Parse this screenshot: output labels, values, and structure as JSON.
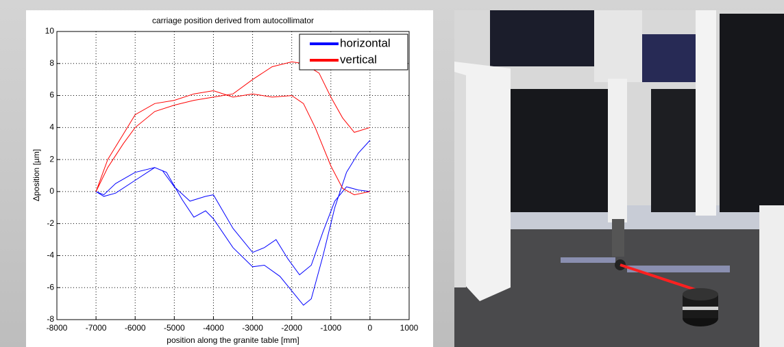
{
  "chart_data": {
    "type": "line",
    "title": "carriage position derived from autocollimator",
    "x_label": "position along the granite table [mm]",
    "y_label": "Δposition [µm]",
    "xlim": [
      -8000,
      1000
    ],
    "xticks": [
      -8000,
      -7000,
      -6000,
      -5000,
      -4000,
      -3000,
      -2000,
      -1000,
      0,
      1000
    ],
    "ylim": [
      -8,
      10
    ],
    "yticks": [
      -8,
      -6,
      -4,
      -2,
      0,
      2,
      4,
      6,
      8,
      10
    ],
    "grid": true,
    "legend": "upper right",
    "series": [
      {
        "name": "horizontal",
        "color": "#0000ff",
        "x": [
          -7000,
          -6800,
          -6500,
          -6000,
          -5500,
          -5200,
          -4800,
          -4500,
          -4200,
          -4000,
          -3500,
          -3000,
          -2700,
          -2300,
          -2000,
          -1700,
          -1500,
          -1200,
          -900,
          -600,
          -300,
          0,
          null,
          -7000,
          -6800,
          -6500,
          -6000,
          -5500,
          -5300,
          -5000,
          -4600,
          -4200,
          -4000,
          -3500,
          -3000,
          -2700,
          -2400,
          -2100,
          -1800,
          -1500,
          -1200,
          -900,
          -600,
          -300,
          0
        ],
        "values": [
          0,
          -0.3,
          -0.1,
          0.7,
          1.5,
          1.2,
          -0.5,
          -1.6,
          -1.2,
          -1.7,
          -3.5,
          -4.7,
          -4.6,
          -5.3,
          -6.2,
          -7.1,
          -6.7,
          -4.0,
          -1.0,
          1.2,
          2.4,
          3.2,
          null,
          0,
          -0.2,
          0.5,
          1.2,
          1.5,
          1.3,
          0.3,
          -0.6,
          -0.3,
          -0.2,
          -2.3,
          -3.8,
          -3.5,
          -3.0,
          -4.2,
          -5.2,
          -4.6,
          -2.5,
          -0.6,
          0.3,
          0.1,
          0
        ]
      },
      {
        "name": "vertical",
        "color": "#ff0000",
        "x": [
          -7000,
          -6700,
          -6300,
          -6000,
          -5500,
          -5000,
          -4500,
          -4000,
          -3500,
          -3000,
          -2500,
          -2000,
          -1700,
          -1300,
          -1000,
          -700,
          -400,
          0,
          null,
          -7000,
          -6700,
          -6300,
          -6000,
          -5500,
          -5000,
          -4500,
          -4000,
          -3500,
          -3000,
          -2500,
          -2000,
          -1700,
          -1400,
          -1000,
          -700,
          -400,
          0
        ],
        "values": [
          0,
          1.5,
          3.0,
          4.0,
          5.0,
          5.4,
          5.7,
          5.9,
          6.1,
          7.0,
          7.8,
          8.1,
          8.0,
          7.4,
          5.9,
          4.6,
          3.7,
          4.0,
          null,
          0,
          2.0,
          3.6,
          4.8,
          5.5,
          5.7,
          6.1,
          6.3,
          5.9,
          6.1,
          5.9,
          6.0,
          5.5,
          4.0,
          1.6,
          0.2,
          -0.2,
          0
        ]
      }
    ]
  }
}
